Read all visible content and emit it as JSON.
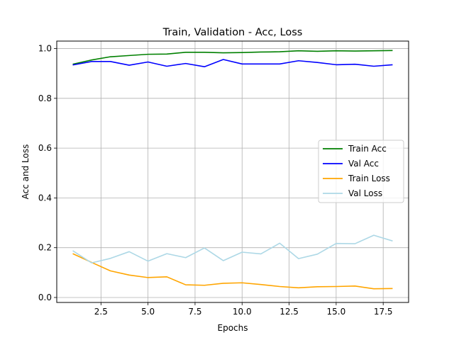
{
  "chart_data": {
    "type": "line",
    "title": "Train, Validation - Acc, Loss",
    "xlabel": "Epochs",
    "ylabel": "Acc and Loss",
    "xlim": [
      0.15,
      18.85
    ],
    "ylim": [
      -0.02,
      1.03
    ],
    "xticks": [
      2.5,
      5.0,
      7.5,
      10.0,
      12.5,
      15.0,
      17.5
    ],
    "xtick_labels": [
      "2.5",
      "5.0",
      "7.5",
      "10.0",
      "12.5",
      "15.0",
      "17.5"
    ],
    "yticks": [
      0.0,
      0.2,
      0.4,
      0.6,
      0.8,
      1.0
    ],
    "ytick_labels": [
      "0.0",
      "0.2",
      "0.4",
      "0.6",
      "0.8",
      "1.0"
    ],
    "grid": true,
    "legend_position": "center-right",
    "x": [
      1,
      2,
      3,
      4,
      5,
      6,
      7,
      8,
      9,
      10,
      11,
      12,
      13,
      14,
      15,
      16,
      17,
      18
    ],
    "series": [
      {
        "name": "Train Acc",
        "color": "#008000",
        "values": [
          0.937,
          0.954,
          0.967,
          0.972,
          0.977,
          0.978,
          0.985,
          0.985,
          0.983,
          0.984,
          0.986,
          0.987,
          0.991,
          0.989,
          0.991,
          0.99,
          0.991,
          0.992
        ]
      },
      {
        "name": "Val Acc",
        "color": "#0000ff",
        "values": [
          0.934,
          0.948,
          0.948,
          0.933,
          0.946,
          0.929,
          0.94,
          0.927,
          0.956,
          0.938,
          0.938,
          0.938,
          0.951,
          0.944,
          0.935,
          0.937,
          0.929,
          0.935
        ]
      },
      {
        "name": "Train Loss",
        "color": "#ffa500",
        "values": [
          0.176,
          0.141,
          0.107,
          0.09,
          0.08,
          0.083,
          0.051,
          0.049,
          0.057,
          0.059,
          0.052,
          0.044,
          0.039,
          0.043,
          0.044,
          0.046,
          0.035,
          0.036
        ]
      },
      {
        "name": "Val Loss",
        "color": "#add8e6",
        "values": [
          0.188,
          0.139,
          0.157,
          0.184,
          0.146,
          0.176,
          0.16,
          0.199,
          0.148,
          0.182,
          0.175,
          0.218,
          0.156,
          0.174,
          0.217,
          0.216,
          0.25,
          0.227
        ]
      }
    ]
  }
}
